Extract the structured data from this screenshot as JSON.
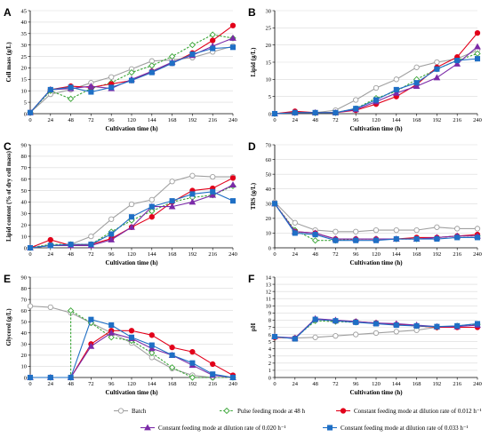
{
  "figure": {
    "legend": [
      {
        "series": "batch",
        "label": "Batch"
      },
      {
        "series": "pulse",
        "label": "Pulse feeding mode at 48 h"
      },
      {
        "series": "c012",
        "label": "Constant feeding mode at dilution rate of 0.012 h⁻¹"
      },
      {
        "series": "c020",
        "label": "Constant feeding mode at dilution rate of 0.020 h⁻¹"
      },
      {
        "series": "c033",
        "label": "Constant feeding mode at dilution rate of 0.033 h⁻¹"
      }
    ]
  },
  "colors": {
    "batch": "#a0a0a0",
    "pulse": "#3aa537",
    "c012": "#e2001a",
    "c020": "#7b2aa8",
    "c033": "#1f6fc5",
    "grid": "#d9d9d9"
  },
  "chart_data": [
    {
      "id": "A",
      "panel_label": "A",
      "type": "line",
      "xlabel": "Cultivation time (h)",
      "ylabel": "Cell mass (g/L)",
      "xlim": [
        0,
        240
      ],
      "xticks": [
        0,
        24,
        48,
        72,
        96,
        120,
        144,
        168,
        192,
        216,
        240
      ],
      "ylim": [
        0,
        45
      ],
      "yticks": [
        0,
        5,
        10,
        15,
        20,
        25,
        30,
        35,
        40,
        45
      ],
      "series": [
        {
          "key": "batch",
          "x": [
            0,
            24,
            48,
            72,
            96,
            120,
            144,
            168,
            192,
            216,
            240
          ],
          "y": [
            0.5,
            8.5,
            10.5,
            13.5,
            16,
            19.5,
            23,
            23.5,
            24.5,
            27,
            29.5
          ]
        },
        {
          "key": "pulse",
          "x": [
            0,
            24,
            48,
            72,
            96,
            120,
            144,
            168,
            192,
            216,
            240
          ],
          "y": [
            0.5,
            10,
            6.5,
            11,
            13.5,
            18,
            21,
            25,
            30,
            34.5,
            33
          ]
        },
        {
          "key": "c012",
          "x": [
            0,
            24,
            48,
            72,
            96,
            120,
            144,
            168,
            192,
            216,
            240
          ],
          "y": [
            0.5,
            10.5,
            12,
            11.5,
            13,
            14.5,
            18.5,
            22,
            26.5,
            32,
            38.5
          ]
        },
        {
          "key": "c020",
          "x": [
            0,
            24,
            48,
            72,
            96,
            120,
            144,
            168,
            192,
            216,
            240
          ],
          "y": [
            0.5,
            10.5,
            11,
            12,
            11,
            15,
            18.5,
            22.5,
            25.5,
            29.5,
            33
          ]
        },
        {
          "key": "c033",
          "x": [
            0,
            24,
            48,
            72,
            96,
            120,
            144,
            168,
            192,
            216,
            240
          ],
          "y": [
            0.5,
            10.5,
            11.5,
            9.5,
            11.5,
            14.5,
            18,
            22,
            26,
            28.5,
            29
          ]
        }
      ]
    },
    {
      "id": "B",
      "panel_label": "B",
      "type": "line",
      "xlabel": "Cultivation time (h)",
      "ylabel": "Lipid (g/L)",
      "xlim": [
        0,
        240
      ],
      "xticks": [
        0,
        24,
        48,
        72,
        96,
        120,
        144,
        168,
        192,
        216,
        240
      ],
      "ylim": [
        0,
        30
      ],
      "yticks": [
        0,
        5,
        10,
        15,
        20,
        25,
        30
      ],
      "series": [
        {
          "key": "batch",
          "x": [
            0,
            24,
            48,
            72,
            96,
            120,
            144,
            168,
            192,
            216,
            240
          ],
          "y": [
            0,
            0.5,
            0.3,
            1,
            4,
            7.5,
            10,
            13.5,
            15,
            16,
            18.5
          ]
        },
        {
          "key": "pulse",
          "x": [
            0,
            24,
            48,
            72,
            96,
            120,
            144,
            168,
            192,
            216,
            240
          ],
          "y": [
            0,
            0.5,
            0.2,
            0.3,
            1.5,
            4.5,
            6.5,
            10,
            13,
            15.5,
            17.5
          ]
        },
        {
          "key": "c012",
          "x": [
            0,
            24,
            48,
            72,
            96,
            120,
            144,
            168,
            192,
            216,
            240
          ],
          "y": [
            0,
            0.7,
            0.3,
            0.3,
            1,
            2.8,
            5,
            8.5,
            13.5,
            16.5,
            23.5
          ]
        },
        {
          "key": "c020",
          "x": [
            0,
            24,
            48,
            72,
            96,
            120,
            144,
            168,
            192,
            216,
            240
          ],
          "y": [
            0,
            0.3,
            0.3,
            0.3,
            1.2,
            3.5,
            6,
            8,
            10.5,
            14.5,
            19.5
          ]
        },
        {
          "key": "c033",
          "x": [
            0,
            24,
            48,
            72,
            96,
            120,
            144,
            168,
            192,
            216,
            240
          ],
          "y": [
            0,
            0.3,
            0.3,
            0.3,
            1.5,
            4,
            7,
            9,
            13,
            15.5,
            16
          ]
        }
      ]
    },
    {
      "id": "C",
      "panel_label": "C",
      "type": "line",
      "xlabel": "Cultivation time (h)",
      "ylabel": "Lipid content (% of dry cell mass)",
      "xlim": [
        0,
        240
      ],
      "xticks": [
        0,
        24,
        48,
        72,
        96,
        120,
        144,
        168,
        192,
        216,
        240
      ],
      "ylim": [
        0,
        90
      ],
      "yticks": [
        0,
        10,
        20,
        30,
        40,
        50,
        60,
        70,
        80,
        90
      ],
      "series": [
        {
          "key": "batch",
          "x": [
            0,
            24,
            48,
            72,
            96,
            120,
            144,
            168,
            192,
            216,
            240
          ],
          "y": [
            0,
            2,
            3,
            10,
            25,
            38,
            42,
            58,
            63,
            62,
            62
          ]
        },
        {
          "key": "pulse",
          "x": [
            0,
            24,
            48,
            72,
            96,
            120,
            144,
            168,
            192,
            216,
            240
          ],
          "y": [
            0,
            3,
            3,
            3,
            14,
            24,
            32,
            40,
            44,
            46,
            54
          ]
        },
        {
          "key": "c012",
          "x": [
            0,
            24,
            48,
            72,
            96,
            120,
            144,
            168,
            192,
            216,
            240
          ],
          "y": [
            0,
            7,
            2,
            3,
            8,
            18,
            27,
            40,
            50,
            52,
            61
          ]
        },
        {
          "key": "c020",
          "x": [
            0,
            24,
            48,
            72,
            96,
            120,
            144,
            168,
            192,
            216,
            240
          ],
          "y": [
            0,
            2,
            2,
            2,
            7,
            18,
            36,
            36,
            40,
            46,
            55
          ]
        },
        {
          "key": "c033",
          "x": [
            0,
            24,
            48,
            72,
            96,
            120,
            144,
            168,
            192,
            216,
            240
          ],
          "y": [
            0,
            2,
            3,
            3,
            12,
            27,
            36,
            41,
            47,
            49,
            41
          ]
        }
      ]
    },
    {
      "id": "D",
      "panel_label": "D",
      "type": "line",
      "xlabel": "Cultivation time (h)",
      "ylabel": "TRS (g/L)",
      "xlim": [
        0,
        240
      ],
      "xticks": [
        0,
        24,
        48,
        72,
        96,
        120,
        144,
        168,
        192,
        216,
        240
      ],
      "ylim": [
        0,
        70
      ],
      "yticks": [
        0,
        10,
        20,
        30,
        40,
        50,
        60,
        70
      ],
      "series": [
        {
          "key": "batch",
          "x": [
            0,
            24,
            48,
            72,
            96,
            120,
            144,
            168,
            192,
            216,
            240
          ],
          "y": [
            31,
            17,
            12,
            11,
            11,
            12,
            12,
            12,
            14,
            13,
            13
          ]
        },
        {
          "key": "pulse",
          "x": [
            0,
            24,
            48,
            72,
            96,
            120,
            144,
            168,
            192,
            216,
            240
          ],
          "y": [
            30,
            12,
            5,
            5,
            6,
            6,
            6,
            6,
            7,
            8,
            8
          ]
        },
        {
          "key": "c012",
          "x": [
            0,
            24,
            48,
            72,
            96,
            120,
            144,
            168,
            192,
            216,
            240
          ],
          "y": [
            30,
            11,
            10,
            6,
            6,
            6,
            6,
            7,
            7,
            8,
            9
          ]
        },
        {
          "key": "c020",
          "x": [
            0,
            24,
            48,
            72,
            96,
            120,
            144,
            168,
            192,
            216,
            240
          ],
          "y": [
            30,
            11,
            10,
            6,
            6,
            6,
            6,
            6,
            7,
            8,
            8
          ]
        },
        {
          "key": "c033",
          "x": [
            0,
            24,
            48,
            72,
            96,
            120,
            144,
            168,
            192,
            216,
            240
          ],
          "y": [
            30,
            10,
            9,
            5,
            5,
            5,
            6,
            6,
            6,
            7,
            7
          ]
        }
      ]
    },
    {
      "id": "E",
      "panel_label": "E",
      "type": "line",
      "xlabel": "Cultivation time (h)",
      "ylabel": "Glycerol (g/L)",
      "xlim": [
        0,
        240
      ],
      "xticks": [
        0,
        24,
        48,
        72,
        96,
        120,
        144,
        168,
        192,
        216,
        240
      ],
      "ylim": [
        0,
        90
      ],
      "yticks": [
        0,
        10,
        20,
        30,
        40,
        50,
        60,
        70,
        80,
        90
      ],
      "series": [
        {
          "key": "batch",
          "x": [
            0,
            24,
            48,
            72,
            96,
            120,
            144,
            168,
            192,
            216,
            240
          ],
          "y": [
            64,
            63,
            58,
            49,
            40,
            31,
            18,
            8,
            2,
            0,
            0
          ]
        },
        {
          "key": "pulse",
          "x": [
            0,
            24,
            48,
            48,
            72,
            96,
            120,
            144,
            168,
            192,
            216,
            240
          ],
          "y": [
            0,
            0,
            0,
            60,
            49,
            36,
            33,
            22,
            9,
            0,
            0,
            0
          ]
        },
        {
          "key": "c012",
          "x": [
            0,
            24,
            48,
            72,
            96,
            120,
            144,
            168,
            192,
            216,
            240
          ],
          "y": [
            0,
            0,
            0,
            30,
            42,
            42,
            38,
            27,
            23,
            12,
            2
          ]
        },
        {
          "key": "c020",
          "x": [
            0,
            24,
            48,
            72,
            96,
            120,
            144,
            168,
            192,
            216,
            240
          ],
          "y": [
            0,
            0,
            0,
            28,
            40,
            35,
            26,
            20,
            11,
            2,
            0
          ]
        },
        {
          "key": "c033",
          "x": [
            0,
            24,
            48,
            72,
            96,
            120,
            144,
            168,
            192,
            216,
            240
          ],
          "y": [
            0,
            0,
            0,
            52,
            47,
            36,
            29,
            20,
            13,
            3,
            0
          ]
        }
      ]
    },
    {
      "id": "F",
      "panel_label": "F",
      "type": "line",
      "xlabel": "Cultivation time (h)",
      "ylabel": "pH",
      "xlim": [
        0,
        240
      ],
      "xticks": [
        0,
        24,
        48,
        72,
        96,
        120,
        144,
        168,
        192,
        216,
        240
      ],
      "ylim": [
        0,
        14
      ],
      "yticks": [
        0,
        1,
        2,
        3,
        4,
        5,
        6,
        7,
        8,
        9,
        10,
        11,
        12,
        13,
        14
      ],
      "series": [
        {
          "key": "batch",
          "x": [
            0,
            24,
            48,
            72,
            96,
            120,
            144,
            168,
            192,
            216,
            240
          ],
          "y": [
            5.6,
            5.5,
            5.6,
            5.8,
            6,
            6.2,
            6.4,
            6.6,
            7,
            7.2,
            7.5
          ]
        },
        {
          "key": "pulse",
          "x": [
            0,
            24,
            48,
            72,
            96,
            120,
            144,
            168,
            192,
            216,
            240
          ],
          "y": [
            5.6,
            5.5,
            7.9,
            7.8,
            7.7,
            7.6,
            7.4,
            7.2,
            7.0,
            7.2,
            7.4
          ]
        },
        {
          "key": "c012",
          "x": [
            0,
            24,
            48,
            72,
            96,
            120,
            144,
            168,
            192,
            216,
            240
          ],
          "y": [
            5.6,
            5.5,
            8.1,
            7.9,
            7.8,
            7.6,
            7.4,
            7.2,
            7.0,
            7.0,
            7.0
          ]
        },
        {
          "key": "c020",
          "x": [
            0,
            24,
            48,
            72,
            96,
            120,
            144,
            168,
            192,
            216,
            240
          ],
          "y": [
            5.7,
            5.5,
            8.2,
            8.0,
            7.8,
            7.6,
            7.5,
            7.3,
            7.1,
            7.1,
            7.3
          ]
        },
        {
          "key": "c033",
          "x": [
            0,
            24,
            48,
            72,
            96,
            120,
            144,
            168,
            192,
            216,
            240
          ],
          "y": [
            5.7,
            5.4,
            8.1,
            7.9,
            7.7,
            7.5,
            7.3,
            7.2,
            7.1,
            7.2,
            7.5
          ]
        }
      ]
    }
  ]
}
